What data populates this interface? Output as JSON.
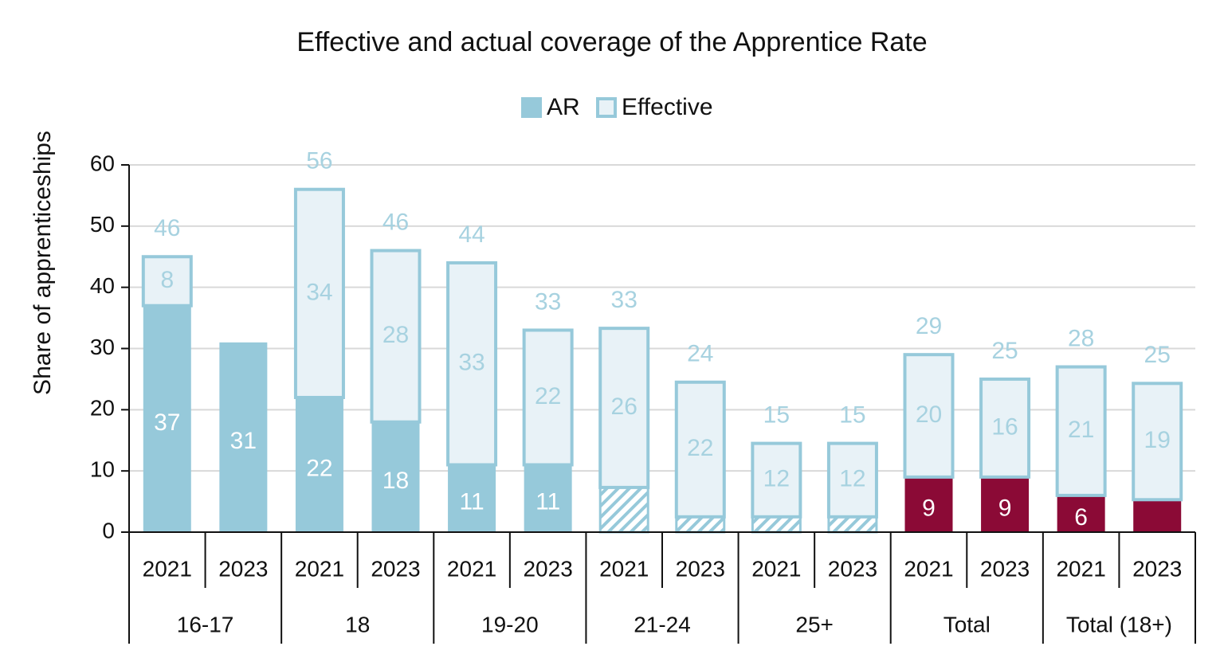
{
  "chart_data": {
    "type": "stacked_bar",
    "title": "Effective and actual coverage of the Apprentice Rate",
    "y_label": "Share of apprenticeships",
    "categories": [
      "2021",
      "2023",
      "2021",
      "2023",
      "2021",
      "2023",
      "2021",
      "2023",
      "2021",
      "2023",
      "2021",
      "2023",
      "2021",
      "2023"
    ],
    "groups": [
      "16-17",
      "18",
      "19-20",
      "21-24",
      "25+",
      "Total",
      "Total (18+)"
    ],
    "series": [
      {
        "name": "AR",
        "color": "#96c9da",
        "colors": [
          "#96c9da",
          "#96c9da",
          "#96c9da",
          "#96c9da",
          "#96c9da",
          "#96c9da",
          "#96c9da",
          "#96c9da",
          "#96c9da",
          "#96c9da",
          "#8b0a36",
          "#8b0a36",
          "#8b0a36",
          "#8b0a36"
        ],
        "hatched": [
          false,
          false,
          false,
          false,
          false,
          false,
          true,
          true,
          true,
          true,
          false,
          false,
          false,
          false
        ],
        "values": [
          37,
          31,
          22,
          18,
          11,
          11,
          7.3,
          2.5,
          2.5,
          2.5,
          9,
          9,
          6,
          5.3
        ],
        "value_labels": [
          "37",
          "31",
          "22",
          "18",
          "11",
          "11",
          null,
          null,
          null,
          null,
          "9",
          "9",
          "6",
          null
        ]
      },
      {
        "name": "Effective",
        "color": "#e8f2f7",
        "edge_color": "#96c9da",
        "values": [
          8,
          null,
          34,
          28,
          33,
          22,
          26,
          22,
          12,
          12,
          20,
          16,
          21,
          19
        ]
      }
    ],
    "totals": [
      46,
      null,
      56,
      46,
      44,
      33,
      33,
      24,
      15,
      15,
      29,
      25,
      28,
      25
    ],
    "ylim": [
      0,
      60
    ],
    "yticks": [
      0,
      10,
      20,
      30,
      40,
      50,
      60
    ],
    "grid": true,
    "legend": "top"
  }
}
